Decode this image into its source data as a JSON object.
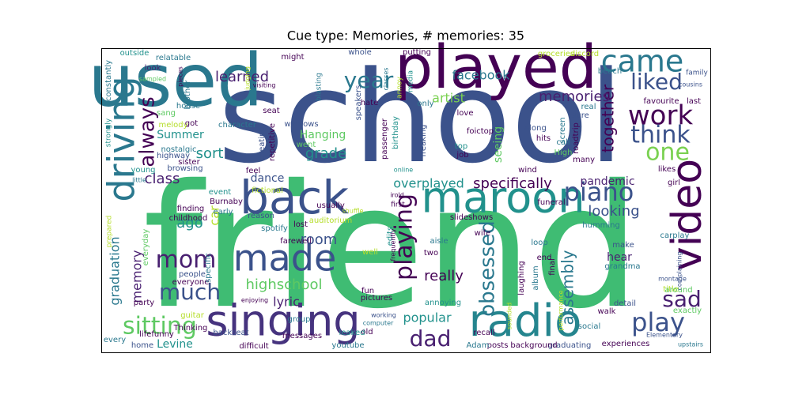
{
  "chart_data": {
    "type": "wordcloud",
    "title": "Cue type: Memories, # memories: 35",
    "words": [
      {
        "text": "friend",
        "color": "#3fbc73"
      },
      {
        "text": "school",
        "color": "#3b528b"
      },
      {
        "text": "used",
        "color": "#2a788e"
      },
      {
        "text": "played",
        "color": "#440154"
      },
      {
        "text": "singing",
        "color": "#46337e"
      },
      {
        "text": "radio",
        "color": "#25858e"
      },
      {
        "text": "maroon",
        "color": "#21918c"
      },
      {
        "text": "back",
        "color": "#3b528b"
      },
      {
        "text": "made",
        "color": "#3b528b"
      },
      {
        "text": "driving",
        "color": "#2a788e"
      },
      {
        "text": "video",
        "color": "#440154"
      },
      {
        "text": "came",
        "color": "#2a788e"
      },
      {
        "text": "liked",
        "color": "#3b528b"
      },
      {
        "text": "work",
        "color": "#440154"
      },
      {
        "text": "think",
        "color": "#3b528b"
      },
      {
        "text": "one",
        "color": "#7ad151"
      },
      {
        "text": "year",
        "color": "#2a788e"
      },
      {
        "text": "always",
        "color": "#440154"
      },
      {
        "text": "piano",
        "color": "#3b528b"
      },
      {
        "text": "looking",
        "color": "#3b528b"
      },
      {
        "text": "sitting",
        "color": "#5ec962"
      },
      {
        "text": "play",
        "color": "#3b528b"
      },
      {
        "text": "sad",
        "color": "#481f70"
      },
      {
        "text": "dad",
        "color": "#481f70"
      },
      {
        "text": "mom",
        "color": "#481f70"
      },
      {
        "text": "much",
        "color": "#3b528b"
      },
      {
        "text": "playing",
        "color": "#440154"
      },
      {
        "text": "obsessed",
        "color": "#2a788e"
      },
      {
        "text": "assembly",
        "color": "#2a788e"
      },
      {
        "text": "together",
        "color": "#440154"
      },
      {
        "text": "memories",
        "color": "#481f70"
      },
      {
        "text": "artist",
        "color": "#7ad151"
      },
      {
        "text": "facebook",
        "color": "#2a788e"
      },
      {
        "text": "learned",
        "color": "#481f70"
      },
      {
        "text": "class",
        "color": "#481f70"
      },
      {
        "text": "sort",
        "color": "#21918c"
      },
      {
        "text": "grade",
        "color": "#21918c"
      },
      {
        "text": "Hanging",
        "color": "#5ec962"
      },
      {
        "text": "Summer",
        "color": "#21918c"
      },
      {
        "text": "overplayed",
        "color": "#21918c"
      },
      {
        "text": "specifically",
        "color": "#440154"
      },
      {
        "text": "pandemic",
        "color": "#481f70"
      },
      {
        "text": "room",
        "color": "#3b528b"
      },
      {
        "text": "ago",
        "color": "#21918c"
      },
      {
        "text": "car",
        "color": "#b5de2b"
      },
      {
        "text": "highschool",
        "color": "#5ec962"
      },
      {
        "text": "lyric",
        "color": "#481f70"
      },
      {
        "text": "popular",
        "color": "#21918c"
      },
      {
        "text": "really",
        "color": "#440154"
      },
      {
        "text": "hear",
        "color": "#481f70"
      },
      {
        "text": "memory",
        "color": "#481f70"
      },
      {
        "text": "graduation",
        "color": "#2a788e"
      },
      {
        "text": "Levine",
        "color": "#21918c"
      },
      {
        "text": "dance",
        "color": "#3b528b"
      },
      {
        "text": "seeing",
        "color": "#5ec962"
      },
      {
        "text": "outside",
        "color": "#21918c"
      },
      {
        "text": "relatable",
        "color": "#2a788e"
      },
      {
        "text": "might",
        "color": "#440154"
      },
      {
        "text": "whole",
        "color": "#3b528b"
      },
      {
        "text": "putting",
        "color": "#440154"
      },
      {
        "text": "groceries",
        "color": "#b5de2b"
      },
      {
        "text": "discord",
        "color": "#b5de2b"
      },
      {
        "text": "look",
        "color": "#481f70"
      },
      {
        "text": "brother",
        "color": "#2a788e"
      },
      {
        "text": "house",
        "color": "#2a788e"
      },
      {
        "text": "sang",
        "color": "#5ec962"
      },
      {
        "text": "got",
        "color": "#440154"
      },
      {
        "text": "melody",
        "color": "#b5de2b"
      },
      {
        "text": "nostalgic",
        "color": "#2a788e"
      },
      {
        "text": "highway",
        "color": "#3b528b"
      },
      {
        "text": "character",
        "color": "#2a788e"
      },
      {
        "text": "seat",
        "color": "#440154"
      },
      {
        "text": "windows",
        "color": "#3b528b"
      },
      {
        "text": "went",
        "color": "#5ec962"
      },
      {
        "text": "cheating",
        "color": "#3b528b"
      },
      {
        "text": "repetitive",
        "color": "#440154"
      },
      {
        "text": "feel",
        "color": "#440154"
      },
      {
        "text": "usually",
        "color": "#440154"
      },
      {
        "text": "event",
        "color": "#21918c"
      },
      {
        "text": "Burnaby",
        "color": "#440154"
      },
      {
        "text": "early",
        "color": "#2a788e"
      },
      {
        "text": "finding",
        "color": "#440154"
      },
      {
        "text": "childhood",
        "color": "#440154"
      },
      {
        "text": "reason",
        "color": "#3b528b"
      },
      {
        "text": "lost",
        "color": "#440154"
      },
      {
        "text": "farewell",
        "color": "#440154"
      },
      {
        "text": "spotify",
        "color": "#2a788e"
      },
      {
        "text": "auditorium",
        "color": "#b5de2b"
      },
      {
        "text": "group",
        "color": "#2a788e"
      },
      {
        "text": "messages",
        "color": "#440154"
      },
      {
        "text": "difficult",
        "color": "#440154"
      },
      {
        "text": "backseat",
        "color": "#3b528b"
      },
      {
        "text": "Thinking",
        "color": "#440154"
      },
      {
        "text": "party",
        "color": "#440154"
      },
      {
        "text": "everyday",
        "color": "#5ec962"
      },
      {
        "text": "people",
        "color": "#3b528b"
      },
      {
        "text": "everyone",
        "color": "#440154"
      },
      {
        "text": "specific",
        "color": "#2a788e"
      },
      {
        "text": "sister",
        "color": "#440154"
      },
      {
        "text": "browsing",
        "color": "#3b528b"
      },
      {
        "text": "young",
        "color": "#21918c"
      },
      {
        "text": "little",
        "color": "#2a788e"
      },
      {
        "text": "prepared",
        "color": "#b5de2b"
      },
      {
        "text": "strongly",
        "color": "#21918c"
      },
      {
        "text": "constantly",
        "color": "#2a788e"
      },
      {
        "text": "fictional",
        "color": "#b5de2b"
      },
      {
        "text": "pictures",
        "color": "#440154"
      },
      {
        "text": "fun",
        "color": "#440154"
      },
      {
        "text": "well",
        "color": "#b5de2b"
      },
      {
        "text": "edits",
        "color": "#21918c"
      },
      {
        "text": "first",
        "color": "#440154"
      },
      {
        "text": "shuffle",
        "color": "#b5de2b"
      },
      {
        "text": "passenger",
        "color": "#440154"
      },
      {
        "text": "birthday",
        "color": "#21918c"
      },
      {
        "text": "freaking",
        "color": "#3b528b"
      },
      {
        "text": "hate",
        "color": "#440154"
      },
      {
        "text": "speakers",
        "color": "#3b528b"
      },
      {
        "text": "only",
        "color": "#2a788e"
      },
      {
        "text": "love",
        "color": "#440154"
      },
      {
        "text": "foictop",
        "color": "#440154"
      },
      {
        "text": "top",
        "color": "#21918c"
      },
      {
        "text": "job",
        "color": "#440154"
      },
      {
        "text": "hits",
        "color": "#440154"
      },
      {
        "text": "along",
        "color": "#3b528b"
      },
      {
        "text": "wind",
        "color": "#440154"
      },
      {
        "text": "roadtrip",
        "color": "#440154"
      },
      {
        "text": "screen",
        "color": "#2a788e"
      },
      {
        "text": "High",
        "color": "#5ec962"
      },
      {
        "text": "many",
        "color": "#440154"
      },
      {
        "text": "call",
        "color": "#2a788e"
      },
      {
        "text": "real",
        "color": "#2a788e"
      },
      {
        "text": "beach",
        "color": "#2a788e"
      },
      {
        "text": "sure",
        "color": "#3b528b"
      },
      {
        "text": "favourite",
        "color": "#440154"
      },
      {
        "text": "last",
        "color": "#440154"
      },
      {
        "text": "family",
        "color": "#3b528b"
      },
      {
        "text": "cousins",
        "color": "#3b528b"
      },
      {
        "text": "likes",
        "color": "#440154"
      },
      {
        "text": "girl",
        "color": "#440154"
      },
      {
        "text": "carplay",
        "color": "#2a788e"
      },
      {
        "text": "complaining",
        "color": "#3b528b"
      },
      {
        "text": "title",
        "color": "#b5de2b"
      },
      {
        "text": "exactly",
        "color": "#5ec962"
      },
      {
        "text": "Elementary",
        "color": "#3b528b"
      },
      {
        "text": "upstairs",
        "color": "#2a788e"
      },
      {
        "text": "experiences",
        "color": "#440154"
      },
      {
        "text": "graduating",
        "color": "#3b528b"
      },
      {
        "text": "background",
        "color": "#440154"
      },
      {
        "text": "posts",
        "color": "#440154"
      },
      {
        "text": "Adam",
        "color": "#2a788e"
      },
      {
        "text": "youtube",
        "color": "#2a788e"
      },
      {
        "text": "old",
        "color": "#440154"
      },
      {
        "text": "leaked",
        "color": "#21918c"
      },
      {
        "text": "computer",
        "color": "#2a788e"
      },
      {
        "text": "working",
        "color": "#3b528b"
      },
      {
        "text": "annoying",
        "color": "#21918c"
      },
      {
        "text": "slideshows",
        "color": "#440154"
      },
      {
        "text": "aisle",
        "color": "#2a788e"
      },
      {
        "text": "wife",
        "color": "#440154"
      },
      {
        "text": "two",
        "color": "#440154"
      },
      {
        "text": "loop",
        "color": "#2a788e"
      },
      {
        "text": "end",
        "color": "#440154"
      },
      {
        "text": "final",
        "color": "#440154"
      },
      {
        "text": "album",
        "color": "#2a788e"
      },
      {
        "text": "laughing",
        "color": "#440154"
      },
      {
        "text": "recall",
        "color": "#440154"
      },
      {
        "text": "walk",
        "color": "#440154"
      },
      {
        "text": "around",
        "color": "#5ec962"
      },
      {
        "text": "montage",
        "color": "#3b528b"
      },
      {
        "text": "detail",
        "color": "#3b528b"
      },
      {
        "text": "grandma",
        "color": "#2a788e"
      },
      {
        "text": "funeral",
        "color": "#440154"
      },
      {
        "text": "humming",
        "color": "#2a788e"
      },
      {
        "text": "make",
        "color": "#3b528b"
      },
      {
        "text": "social",
        "color": "#2a788e"
      },
      {
        "text": "performance",
        "color": "#b5de2b"
      },
      {
        "text": "sounded",
        "color": "#b5de2b"
      },
      {
        "text": "media",
        "color": "#21918c"
      },
      {
        "text": "annoy",
        "color": "#b5de2b"
      },
      {
        "text": "classes",
        "color": "#2a788e"
      },
      {
        "text": "pieces",
        "color": "#440154"
      },
      {
        "text": "judging",
        "color": "#b5de2b"
      },
      {
        "text": "visiting",
        "color": "#440154"
      },
      {
        "text": "sampled",
        "color": "#5ec962"
      },
      {
        "text": "guitar",
        "color": "#b5de2b"
      },
      {
        "text": "lifefunny",
        "color": "#440154"
      },
      {
        "text": "every",
        "color": "#2a788e"
      },
      {
        "text": "home",
        "color": "#3b528b"
      },
      {
        "text": "online",
        "color": "#21918c"
      },
      {
        "text": "enjoying",
        "color": "#440154"
      },
      {
        "text": "frequently",
        "color": "#440154"
      },
      {
        "text": "blasting",
        "color": "#2a788e"
      },
      {
        "text": "irold",
        "color": "#440154"
      }
    ]
  }
}
